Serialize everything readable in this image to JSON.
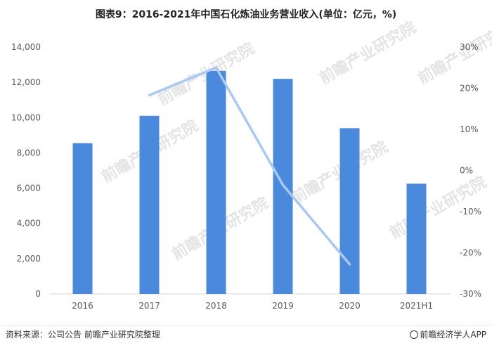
{
  "title": "图表9：2016-2021年中国石化炼油业务营业收入(单位：亿元，%)",
  "watermark_text": "前瞻产业研究院",
  "footer": {
    "source": "资料来源：公司公告 前瞻产业研究院整理",
    "brand": "前瞻经济学人APP"
  },
  "colors": {
    "bar": "#4a89dc",
    "line": "#a9c8f2",
    "axis": "#d9d9d9",
    "text": "#595959"
  },
  "chart_data": {
    "type": "bar",
    "categories": [
      "2016",
      "2017",
      "2018",
      "2019",
      "2020",
      "2021H1"
    ],
    "series": [
      {
        "type": "bar",
        "axis": "left",
        "values": [
          8550,
          10100,
          12650,
          12200,
          9400,
          6250
        ]
      },
      {
        "type": "line",
        "axis": "right",
        "values": [
          null,
          18.3,
          25.0,
          -3.5,
          -22.8,
          null
        ]
      }
    ],
    "ylim_left": [
      0,
      14000
    ],
    "yticks_left": [
      "0",
      "2,000",
      "4,000",
      "6,000",
      "8,000",
      "10,000",
      "12,000",
      "14,000"
    ],
    "ylim_right": [
      -30,
      30
    ],
    "yticks_right": [
      "-30%",
      "-20%",
      "-10%",
      "0%",
      "10%",
      "20%",
      "30%"
    ],
    "grid": false
  }
}
